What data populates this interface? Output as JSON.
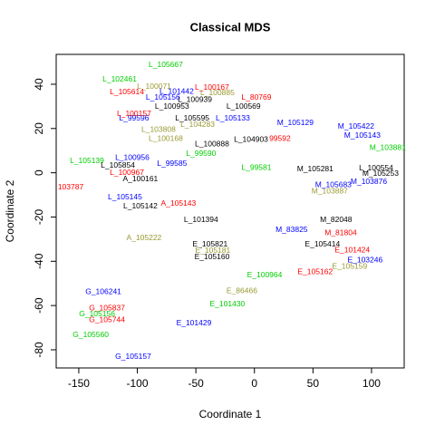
{
  "chart_data": {
    "type": "scatter",
    "title": "Classical MDS",
    "x_label": "Coordinate 1",
    "y_label": "Coordinate 2",
    "xlim": [
      -169.3,
      127.9
    ],
    "ylim": [
      -88.2,
      53.5
    ],
    "xticks": [
      -150,
      -100,
      -50,
      0,
      50,
      100
    ],
    "yticks": [
      -80,
      -60,
      -40,
      -20,
      0,
      20,
      40
    ],
    "grid": false,
    "point_labels": [
      "L_105667",
      "L_102461",
      "L_100167",
      "L_100885",
      "L_80769",
      "L_105133",
      "M_105129",
      "L_99596",
      "L_103808",
      "L_100168",
      "L_100888",
      "L_104903",
      "99592",
      "L_100956",
      "L_99585",
      "L_99590",
      "L_99581",
      "L_105139",
      "L_105854",
      "L_100967",
      "A_100161",
      "103787",
      "L_105145",
      "L_105142",
      "A_105143",
      "L_101394",
      "A_105222",
      "E_105821",
      "E_105181",
      "E_105160",
      "M_82048",
      "M_83825",
      "E_105414",
      "E_101424",
      "M_81804",
      "E_105162",
      "E_105159",
      "E_103246",
      "E_100964",
      "E_86466",
      "E_101430",
      "E_101429",
      "G_106241",
      "G_105837",
      "G_105744",
      "G_105156",
      "G_105560",
      "G_105157",
      "M_103876",
      "M_105253",
      "M_103881",
      "M_105422",
      "M_105143",
      "M_103887",
      "M_105683",
      "M_105281",
      "L_100554",
      "L_100953",
      "L_100939",
      "L_100569",
      "L_105595",
      "L_104283",
      "L_105614",
      "L_100071",
      "L_100157",
      "L_101442",
      "L_105156"
    ],
    "x": [
      -75.7,
      -115.1,
      -36.2,
      -31.6,
      1.7,
      -18.4,
      34.9,
      -102.8,
      -81.9,
      -75.7,
      -36.2,
      -2.9,
      21.8,
      -104.3,
      -70.4,
      -45.6,
      1.7,
      -143,
      -116.6,
      -108.9,
      -97.4,
      -156.9,
      -110.5,
      -97.4,
      -64.9,
      -45.6,
      -94.3,
      -37.8,
      -35.5,
      -36.2,
      69.7,
      31.8,
      58.1,
      83.6,
      73.7,
      51.9,
      81.3,
      94.5,
      8.7,
      -10.7,
      -23.1,
      -51.7,
      -129,
      -125.9,
      -125.9,
      -134.4,
      -139.8,
      -103.5,
      97.7,
      107.7,
      113.8,
      86.8,
      92.2,
      64.3,
      67.4,
      51.9,
      103.9,
      -70.4,
      -50.8,
      -9.3,
      -53.1,
      -48.5,
      -108.9,
      -85.7,
      -102.8,
      -66.4,
      -78.1
    ],
    "values": [
      48.6,
      42.1,
      38.4,
      35.9,
      33.9,
      24.5,
      22.4,
      24.5,
      19.5,
      15.4,
      12.9,
      15.0,
      15.4,
      6.8,
      4.0,
      8.5,
      2.3,
      5.2,
      3.2,
      -0.1,
      -3.0,
      -6.7,
      -11.2,
      -15.3,
      -14.0,
      -21.4,
      -29.6,
      -32.5,
      -35.3,
      -38.2,
      -21.4,
      -25.9,
      -32.5,
      -35.0,
      -27.2,
      -44.8,
      -42.4,
      -39.5,
      -46.4,
      -53.4,
      -59.5,
      -68.1,
      -53.8,
      -61.2,
      -66.5,
      -64.0,
      -73.4,
      -83.2,
      -4.2,
      -0.5,
      11.3,
      20.8,
      16.7,
      -8.4,
      -5.5,
      1.5,
      1.9,
      29.8,
      33.0,
      29.8,
      24.5,
      21.6,
      36.3,
      38.8,
      26.5,
      36.7,
      33.9
    ],
    "colors": [
      "#00cd00",
      "#00cd00",
      "#ff0000",
      "#999933",
      "#ff0000",
      "#0000ff",
      "#0000ff",
      "#0000ff",
      "#999933",
      "#999933",
      "#000000",
      "#000000",
      "#ff0000",
      "#0000ff",
      "#0000ff",
      "#00cd00",
      "#00cd00",
      "#00cd00",
      "#000000",
      "#ff0000",
      "#000000",
      "#ff0000",
      "#0000ff",
      "#000000",
      "#ff0000",
      "#000000",
      "#999933",
      "#000000",
      "#999933",
      "#000000",
      "#000000",
      "#0000ff",
      "#000000",
      "#ff0000",
      "#ff0000",
      "#ff0000",
      "#999933",
      "#0000ff",
      "#00cd00",
      "#999933",
      "#00cd00",
      "#0000ff",
      "#0000ff",
      "#ff0000",
      "#ff0000",
      "#00cd00",
      "#00cd00",
      "#0000ff",
      "#0000ff",
      "#000000",
      "#00cd00",
      "#0000ff",
      "#0000ff",
      "#999933",
      "#0000ff",
      "#000000",
      "#000000",
      "#000000",
      "#000000",
      "#000000",
      "#000000",
      "#999933",
      "#ff0000",
      "#999933",
      "#ff0000",
      "#0000ff",
      "#0000ff"
    ]
  }
}
